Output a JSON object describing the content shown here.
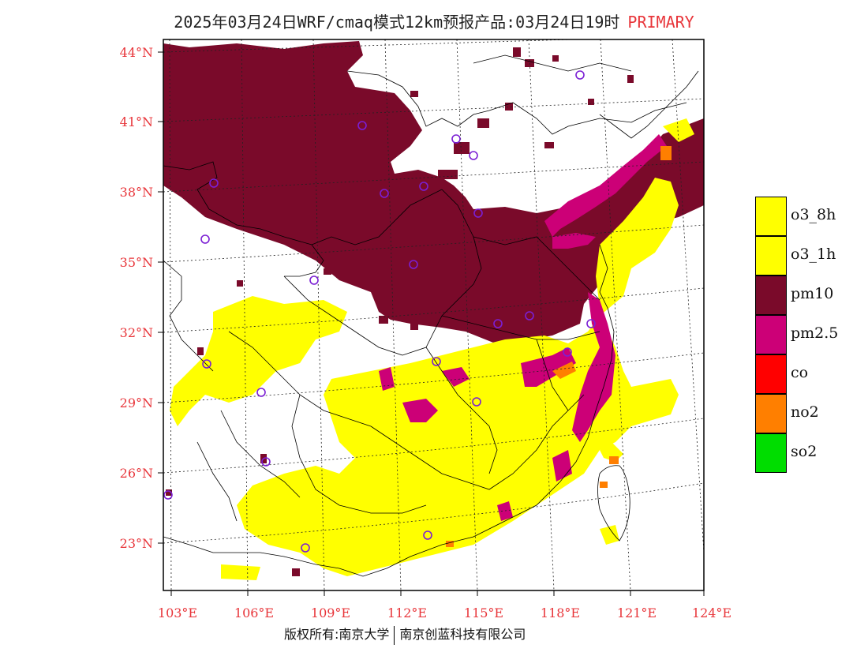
{
  "title": {
    "text": "2025年03月24日WRF/cmaq模式12km预报产品:03月24日19时",
    "tag": "PRIMARY"
  },
  "axes": {
    "lat_labels": [
      "44°N",
      "41°N",
      "38°N",
      "35°N",
      "32°N",
      "29°N",
      "26°N",
      "23°N"
    ],
    "lon_labels": [
      "103°E",
      "106°E",
      "109°E",
      "112°E",
      "115°E",
      "118°E",
      "121°E",
      "124°E"
    ]
  },
  "legend": {
    "items": [
      {
        "label": "o3_8h",
        "color": "#ffff00"
      },
      {
        "label": "o3_1h",
        "color": "#ffff00"
      },
      {
        "label": "pm10",
        "color": "#7a0a2a"
      },
      {
        "label": "pm2.5",
        "color": "#cc0077"
      },
      {
        "label": "co",
        "color": "#ff0000"
      },
      {
        "label": "no2",
        "color": "#ff7f00"
      },
      {
        "label": "so2",
        "color": "#00dd00"
      }
    ]
  },
  "copyright": {
    "left": "版权所有:南京大学",
    "right": "南京创蓝科技有限公司"
  }
}
